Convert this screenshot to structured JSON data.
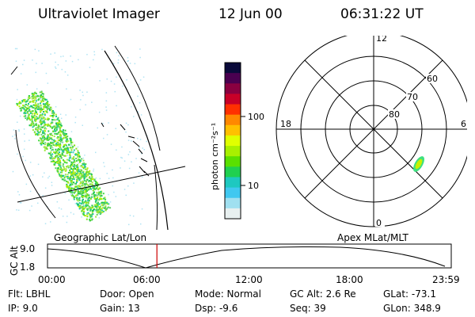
{
  "header": {
    "title": "Ultraviolet Imager",
    "date": "12 Jun 00",
    "time": "06:31:22 UT"
  },
  "colorbar": {
    "label": "photon cm⁻²s⁻¹",
    "ticks": [
      "100",
      "10"
    ],
    "colors": [
      "#0a0a3a",
      "#4a0050",
      "#8a0040",
      "#c80028",
      "#ff3000",
      "#ff8800",
      "#ffc000",
      "#e0ff00",
      "#a8f000",
      "#5ae000",
      "#20d050",
      "#1ec8c0",
      "#40c8f0",
      "#a0e0f0",
      "#e8f0f0"
    ]
  },
  "polar": {
    "labels": {
      "top": "12",
      "bottom": "0",
      "left": "18",
      "right": "6"
    },
    "lat_labels": [
      "60",
      "70",
      "80"
    ]
  },
  "orbit": {
    "left_label": "Geographic Lat/Lon",
    "right_label": "Apex MLat/MLT",
    "axis_title": "GC Alt",
    "y_ticks": [
      "9.0",
      "1.8"
    ],
    "x_ticks": [
      "00:00",
      "06:00",
      "12:00",
      "18:00",
      "23:59"
    ],
    "current_time_fraction": 0.271,
    "marker_color": "#cc0000"
  },
  "info": {
    "flt": "Flt: LBHL",
    "ip": "IP:  9.0",
    "door": "Door: Open",
    "gain": "Gain: 13",
    "mode": "Mode: Normal",
    "dsp": "Dsp:    -9.6",
    "gcalt": "GC Alt: 2.6 Re",
    "seq": "Seq: 39",
    "glat": "GLat: -73.1",
    "glon": "GLon: 348.9"
  }
}
